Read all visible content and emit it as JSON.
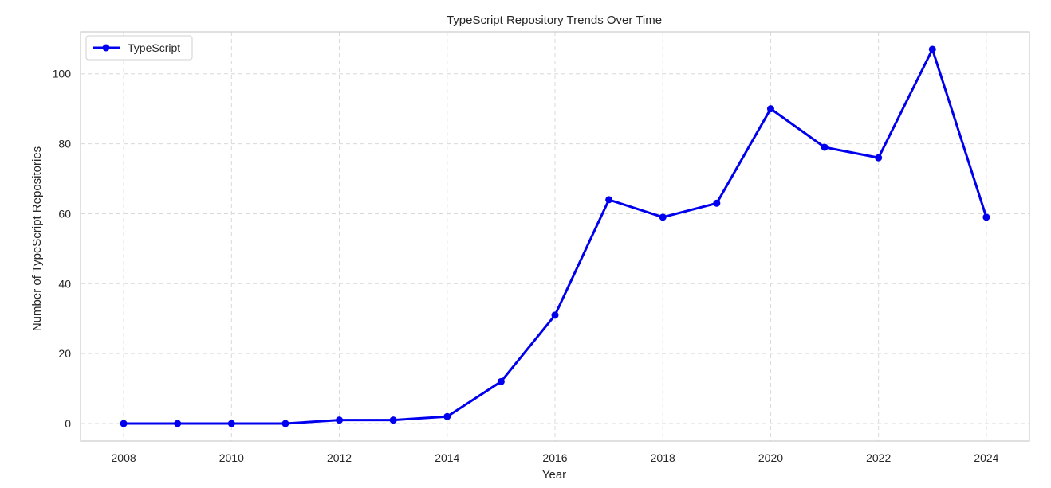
{
  "chart_data": {
    "type": "line",
    "title": "TypeScript Repository Trends Over Time",
    "xlabel": "Year",
    "ylabel": "Number of TypeScript Repositories",
    "x": [
      2008,
      2009,
      2010,
      2011,
      2012,
      2013,
      2014,
      2015,
      2016,
      2017,
      2018,
      2019,
      2020,
      2021,
      2022,
      2023,
      2024
    ],
    "series": [
      {
        "name": "TypeScript",
        "color": "#0000ee",
        "values": [
          0,
          0,
          0,
          0,
          1,
          1,
          2,
          12,
          31,
          64,
          59,
          63,
          90,
          79,
          76,
          107,
          59
        ]
      }
    ],
    "xlim": [
      2007.2,
      2024.8
    ],
    "ylim": [
      -5,
      112
    ],
    "x_ticks": [
      2008,
      2010,
      2012,
      2014,
      2016,
      2018,
      2020,
      2022,
      2024
    ],
    "y_ticks": [
      0,
      20,
      40,
      60,
      80,
      100
    ],
    "grid": true,
    "grid_style": "dashed",
    "legend_position": "top-left",
    "marker": "circle"
  }
}
